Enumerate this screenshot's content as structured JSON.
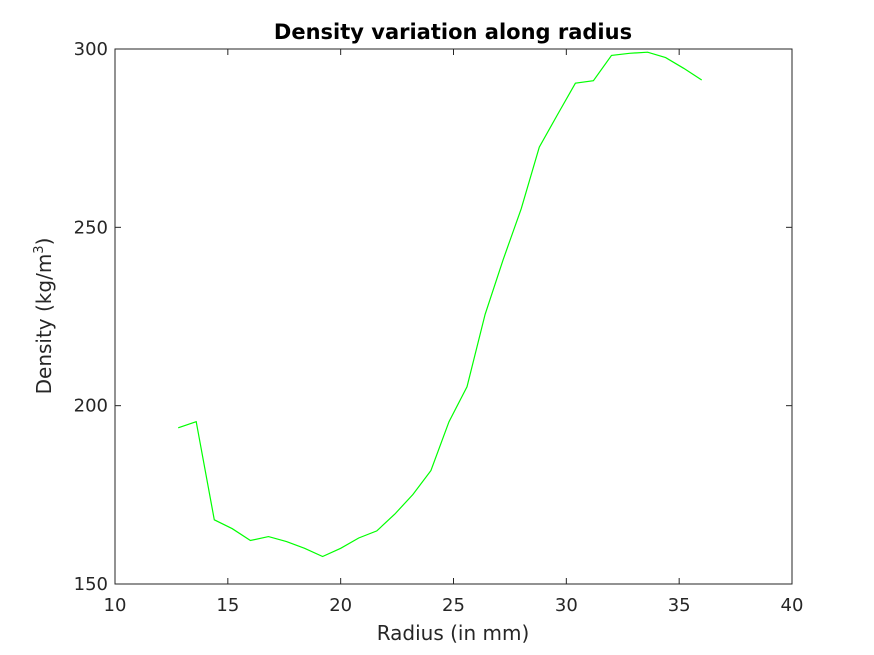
{
  "chart_data": {
    "type": "line",
    "title": "Density variation along radius",
    "xlabel": "Radius (in mm)",
    "ylabel": {
      "main": "Density (kg/m",
      "superscript": "3",
      "close": ")"
    },
    "xlim": [
      10,
      40
    ],
    "ylim": [
      150,
      300
    ],
    "xticks": [
      10,
      15,
      20,
      25,
      30,
      35,
      40
    ],
    "yticks": [
      150,
      200,
      250,
      300
    ],
    "grid": false,
    "line_color": "#00ff00",
    "series": [
      {
        "x": [
          12.8,
          13.6,
          14.4,
          15.2,
          16.0,
          16.8,
          17.6,
          18.4,
          19.2,
          20.0,
          20.8,
          21.6,
          22.4,
          23.2,
          24.0,
          24.8,
          25.6,
          26.4,
          27.2,
          28.0,
          28.8,
          29.6,
          30.4,
          31.2,
          32.0,
          32.8,
          33.6,
          34.4,
          35.2,
          36.0
        ],
        "y": [
          193.8,
          195.5,
          168.0,
          165.5,
          162.2,
          163.3,
          161.9,
          160.0,
          157.7,
          160.0,
          162.9,
          164.9,
          169.6,
          175.1,
          181.8,
          195.5,
          205.3,
          225.6,
          240.9,
          255.2,
          272.5,
          281.5,
          290.4,
          291.1,
          298.2,
          298.8,
          299.1,
          297.6,
          294.6,
          291.3
        ]
      }
    ]
  }
}
